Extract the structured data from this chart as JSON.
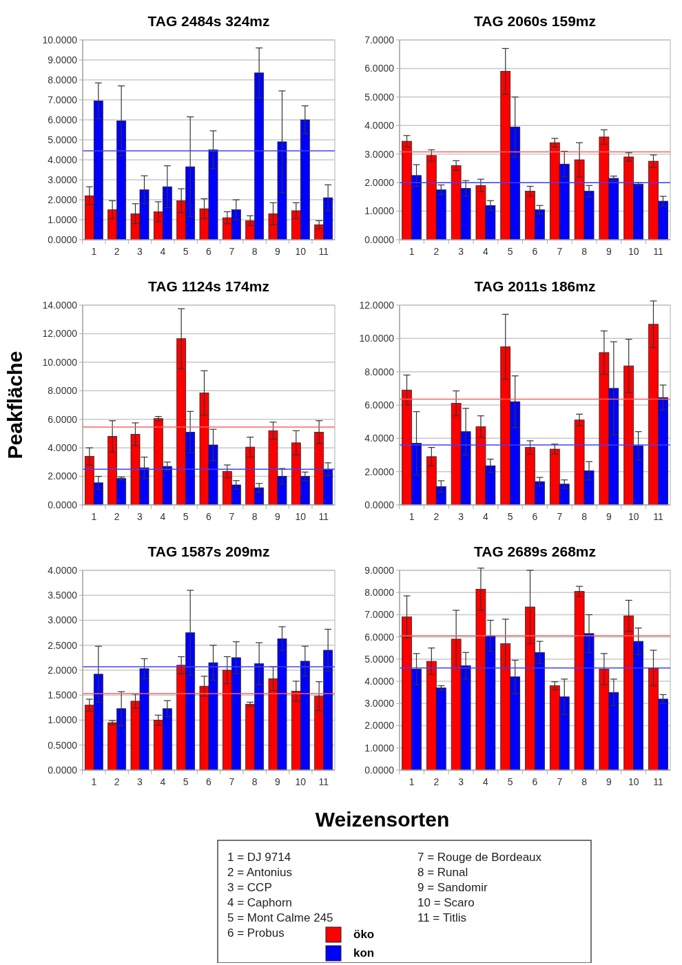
{
  "chart_data": [
    {
      "type": "bar",
      "title": "TAG 2484s 324mz",
      "categories": [
        "1",
        "2",
        "3",
        "4",
        "5",
        "6",
        "7",
        "8",
        "9",
        "10",
        "11"
      ],
      "ylim": [
        0,
        10
      ],
      "yticks": [
        {
          "value": 0,
          "label": "0.0000"
        },
        {
          "value": 1,
          "label": "1.0000"
        },
        {
          "value": 2,
          "label": "2.0000"
        },
        {
          "value": 3,
          "label": "3.0000"
        },
        {
          "value": 4,
          "label": "4.0000"
        },
        {
          "value": 5,
          "label": "5.0000"
        },
        {
          "value": 6,
          "label": "6.0000"
        },
        {
          "value": 7,
          "label": "7.0000"
        },
        {
          "value": 8,
          "label": "8.0000"
        },
        {
          "value": 9,
          "label": "9.0000"
        },
        {
          "value": 10,
          "label": "10.0000"
        }
      ],
      "grid": true,
      "series": [
        {
          "color": "#ff0000",
          "values": [
            2.2,
            1.5,
            1.3,
            1.4,
            1.95,
            1.55,
            1.1,
            0.95,
            1.3,
            1.45,
            0.75
          ],
          "errors": [
            0.45,
            0.45,
            0.5,
            0.5,
            0.6,
            0.5,
            0.3,
            0.25,
            0.55,
            0.4,
            0.2
          ]
        },
        {
          "color": "#0000ff",
          "values": [
            6.95,
            5.95,
            2.5,
            2.65,
            3.65,
            4.5,
            1.5,
            8.35,
            4.9,
            6.0,
            2.1
          ],
          "errors": [
            0.9,
            1.75,
            0.7,
            1.05,
            2.5,
            0.95,
            0.5,
            1.25,
            2.55,
            0.7,
            0.65
          ]
        }
      ],
      "ref_lines": [
        {
          "axis": "y",
          "value": 4.45,
          "color": "#4040ff"
        }
      ]
    },
    {
      "type": "bar",
      "title": "TAG 2060s 159mz",
      "categories": [
        "1",
        "2",
        "3",
        "4",
        "5",
        "6",
        "7",
        "8",
        "9",
        "10",
        "11"
      ],
      "ylim": [
        0,
        7
      ],
      "yticks": [
        {
          "value": 0,
          "label": "0.0000"
        },
        {
          "value": 1,
          "label": "1.0000"
        },
        {
          "value": 2,
          "label": "2.0000"
        },
        {
          "value": 3,
          "label": "3.0000"
        },
        {
          "value": 4,
          "label": "4.0000"
        },
        {
          "value": 5,
          "label": "5.0000"
        },
        {
          "value": 6,
          "label": "6.0000"
        },
        {
          "value": 7,
          "label": "7.0000"
        }
      ],
      "grid": true,
      "series": [
        {
          "color": "#ff0000",
          "values": [
            3.45,
            2.95,
            2.6,
            1.9,
            5.9,
            1.7,
            3.4,
            2.8,
            3.6,
            2.9,
            2.75
          ],
          "errors": [
            0.2,
            0.2,
            0.17,
            0.22,
            0.8,
            0.17,
            0.15,
            0.6,
            0.25,
            0.15,
            0.22
          ]
        },
        {
          "color": "#0000ff",
          "values": [
            2.25,
            1.75,
            1.8,
            1.2,
            3.95,
            1.05,
            2.65,
            1.7,
            2.15,
            1.95,
            1.35
          ],
          "errors": [
            0.38,
            0.17,
            0.27,
            0.17,
            1.05,
            0.15,
            0.45,
            0.2,
            0.08,
            0.05,
            0.17
          ]
        }
      ],
      "ref_lines": [
        {
          "axis": "y",
          "value": 3.08,
          "color": "#ff6060"
        },
        {
          "axis": "y",
          "value": 2.0,
          "color": "#4040ff"
        }
      ]
    },
    {
      "type": "bar",
      "title": "TAG 1124s 174mz",
      "ylabel": "Peakfläche",
      "categories": [
        "1",
        "2",
        "3",
        "4",
        "5",
        "6",
        "7",
        "8",
        "9",
        "10",
        "11"
      ],
      "ylim": [
        0,
        14
      ],
      "yticks": [
        {
          "value": 0,
          "label": "0.0000"
        },
        {
          "value": 2,
          "label": "2.0000"
        },
        {
          "value": 4,
          "label": "4.0000"
        },
        {
          "value": 6,
          "label": "6.0000"
        },
        {
          "value": 8,
          "label": "8.0000"
        },
        {
          "value": 10,
          "label": "10.0000"
        },
        {
          "value": 12,
          "label": "12.0000"
        },
        {
          "value": 14,
          "label": "14.0000"
        }
      ],
      "grid": true,
      "series": [
        {
          "color": "#ff0000",
          "values": [
            3.4,
            4.8,
            4.95,
            6.05,
            11.65,
            7.85,
            2.35,
            4.05,
            5.2,
            4.35,
            5.1
          ],
          "errors": [
            0.6,
            1.1,
            0.8,
            0.15,
            2.1,
            1.55,
            0.45,
            0.7,
            0.6,
            0.85,
            0.8
          ]
        },
        {
          "color": "#0000ff",
          "values": [
            1.55,
            1.85,
            2.6,
            2.7,
            5.1,
            4.2,
            1.4,
            1.2,
            2.0,
            2.0,
            2.5
          ],
          "errors": [
            0.45,
            0.1,
            0.75,
            0.3,
            1.45,
            1.1,
            0.3,
            0.3,
            0.55,
            0.3,
            0.45
          ]
        }
      ],
      "ref_lines": [
        {
          "axis": "y",
          "value": 5.45,
          "color": "#ff6060"
        },
        {
          "axis": "y",
          "value": 2.5,
          "color": "#4040ff"
        }
      ]
    },
    {
      "type": "bar",
      "title": "TAG 2011s 186mz",
      "categories": [
        "1",
        "2",
        "3",
        "4",
        "5",
        "6",
        "7",
        "8",
        "9",
        "10",
        "11"
      ],
      "ylim": [
        0,
        12
      ],
      "yticks": [
        {
          "value": 0,
          "label": "0.0000"
        },
        {
          "value": 2,
          "label": "2.0000"
        },
        {
          "value": 4,
          "label": "4.0000"
        },
        {
          "value": 6,
          "label": "6.0000"
        },
        {
          "value": 8,
          "label": "8.0000"
        },
        {
          "value": 10,
          "label": "10.0000"
        },
        {
          "value": 12,
          "label": "12.0000"
        }
      ],
      "grid": true,
      "series": [
        {
          "color": "#ff0000",
          "values": [
            6.9,
            2.9,
            6.1,
            4.7,
            9.5,
            3.45,
            3.35,
            5.1,
            9.15,
            8.35,
            10.85
          ],
          "errors": [
            0.9,
            0.55,
            0.75,
            0.65,
            1.95,
            0.4,
            0.3,
            0.35,
            1.3,
            1.6,
            1.4
          ]
        },
        {
          "color": "#0000ff",
          "values": [
            3.7,
            1.1,
            4.4,
            2.35,
            6.2,
            1.4,
            1.25,
            2.05,
            7.0,
            3.55,
            6.45
          ],
          "errors": [
            1.9,
            0.35,
            1.4,
            0.4,
            1.55,
            0.25,
            0.25,
            0.55,
            2.8,
            0.85,
            0.75
          ]
        }
      ],
      "ref_lines": [
        {
          "axis": "y",
          "value": 6.35,
          "color": "#ff6060"
        },
        {
          "axis": "y",
          "value": 3.6,
          "color": "#4040ff"
        }
      ]
    },
    {
      "type": "bar",
      "title": "TAG 1587s 209mz",
      "xlabel": "Weizensorten",
      "categories": [
        "1",
        "2",
        "3",
        "4",
        "5",
        "6",
        "7",
        "8",
        "9",
        "10",
        "11"
      ],
      "ylim": [
        0,
        4
      ],
      "yticks": [
        {
          "value": 0,
          "label": "0.0000"
        },
        {
          "value": 0.5,
          "label": "0.5000"
        },
        {
          "value": 1,
          "label": "1.0000"
        },
        {
          "value": 1.5,
          "label": "1.5000"
        },
        {
          "value": 2,
          "label": "2.0000"
        },
        {
          "value": 2.5,
          "label": "2.5000"
        },
        {
          "value": 3,
          "label": "3.0000"
        },
        {
          "value": 3.5,
          "label": "3.5000"
        },
        {
          "value": 4,
          "label": "4.0000"
        }
      ],
      "grid": true,
      "series": [
        {
          "color": "#ff0000",
          "values": [
            1.3,
            0.95,
            1.38,
            1.0,
            2.1,
            1.68,
            2.0,
            1.32,
            1.83,
            1.58,
            1.48
          ],
          "errors": [
            0.12,
            0.04,
            0.14,
            0.1,
            0.17,
            0.2,
            0.27,
            0.04,
            0.24,
            0.2,
            0.29
          ]
        },
        {
          "color": "#0000ff",
          "values": [
            1.92,
            1.23,
            2.03,
            1.23,
            2.75,
            2.15,
            2.25,
            2.13,
            2.63,
            2.18,
            2.4
          ],
          "errors": [
            0.56,
            0.34,
            0.2,
            0.16,
            0.85,
            0.35,
            0.32,
            0.42,
            0.24,
            0.3,
            0.42
          ]
        }
      ],
      "ref_lines": [
        {
          "axis": "y",
          "value": 1.53,
          "color": "#ff6060"
        },
        {
          "axis": "y",
          "value": 2.07,
          "color": "#4040ff"
        }
      ]
    },
    {
      "type": "bar",
      "title": "TAG 2689s 268mz",
      "legend": "bottom",
      "categories": [
        "1",
        "2",
        "3",
        "4",
        "5",
        "6",
        "7",
        "8",
        "9",
        "10",
        "11"
      ],
      "ylim": [
        0,
        9
      ],
      "yticks": [
        {
          "value": 0,
          "label": "0.0000"
        },
        {
          "value": 1,
          "label": "1.0000"
        },
        {
          "value": 2,
          "label": "2.0000"
        },
        {
          "value": 3,
          "label": "3.0000"
        },
        {
          "value": 4,
          "label": "4.0000"
        },
        {
          "value": 5,
          "label": "5.0000"
        },
        {
          "value": 6,
          "label": "6.0000"
        },
        {
          "value": 7,
          "label": "7.0000"
        },
        {
          "value": 8,
          "label": "8.0000"
        },
        {
          "value": 9,
          "label": "9.0000"
        }
      ],
      "grid": true,
      "series": [
        {
          "name": "öko",
          "color": "#ff0000",
          "values": [
            6.9,
            4.9,
            5.9,
            8.15,
            5.7,
            7.35,
            3.8,
            8.05,
            4.55,
            6.95,
            4.6
          ],
          "errors": [
            0.95,
            0.6,
            1.3,
            0.95,
            1.1,
            1.65,
            0.18,
            0.23,
            0.7,
            0.7,
            0.8
          ]
        },
        {
          "name": "kon",
          "color": "#0000ff",
          "values": [
            4.55,
            3.7,
            4.7,
            6.05,
            4.2,
            5.3,
            3.3,
            6.15,
            3.5,
            5.8,
            3.2
          ],
          "errors": [
            0.7,
            0.1,
            0.6,
            0.7,
            0.75,
            0.5,
            0.8,
            0.85,
            0.6,
            0.6,
            0.2
          ]
        }
      ],
      "ref_lines": [
        {
          "axis": "y",
          "value": 6.05,
          "color": "#ff6060"
        },
        {
          "axis": "y",
          "value": 4.6,
          "color": "#4040ff"
        }
      ]
    },
    {
      "type": "other",
      "annotations": [
        "1 = DJ 9714",
        "2 = Antonius",
        "3 = CCP",
        "4 = Caphorn",
        "5 = Mont Calme 245",
        "6 = Probus",
        "7 = Rouge de Bordeaux",
        "8 = Runal",
        "9 = Sandomir",
        "10 = Scaro",
        "11 = Titlis"
      ]
    }
  ]
}
